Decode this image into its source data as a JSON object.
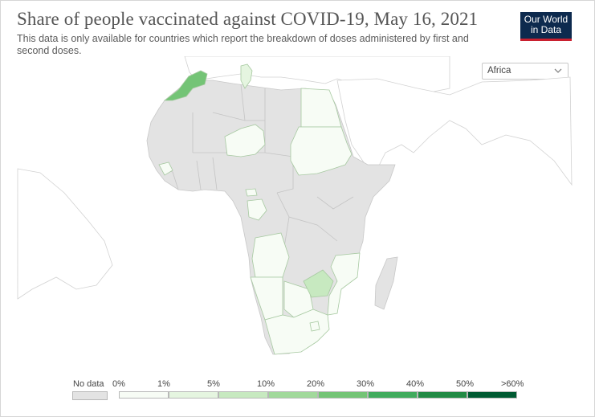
{
  "header": {
    "title": "Share of people vaccinated against COVID-19, May 16, 2021",
    "subtitle": "This data is only available for countries which report the breakdown of doses administered by first and second doses."
  },
  "logo": {
    "line1": "Our World",
    "line2": "in Data"
  },
  "region_select": {
    "value": "Africa"
  },
  "legend": {
    "no_data_label": "No data",
    "ticks": [
      "0%",
      "1%",
      "5%",
      "10%",
      "20%",
      "30%",
      "40%",
      "50%",
      ">60%"
    ],
    "colors": [
      "#f7fcf5",
      "#e5f5e0",
      "#c7e9c0",
      "#a1d99b",
      "#74c476",
      "#41ab5d",
      "#238b45",
      "#005a32"
    ]
  },
  "colors": {
    "no_data": "#e3e3e3",
    "land_outside": "#ffffff",
    "border": "#bdbdbd"
  },
  "map": {
    "countries": [
      {
        "name": "Morocco",
        "bin": 4
      },
      {
        "name": "Tunisia",
        "bin": 1
      },
      {
        "name": "Egypt",
        "bin": 0
      },
      {
        "name": "Sudan",
        "bin": 0
      },
      {
        "name": "Nigeria",
        "bin": 0
      },
      {
        "name": "Sierra Leone",
        "bin": 0
      },
      {
        "name": "Gabon",
        "bin": 0
      },
      {
        "name": "Equatorial Guinea",
        "bin": 0
      },
      {
        "name": "Angola",
        "bin": 0
      },
      {
        "name": "Namibia",
        "bin": 0
      },
      {
        "name": "Botswana",
        "bin": 0
      },
      {
        "name": "Zimbabwe",
        "bin": 2
      },
      {
        "name": "Mozambique",
        "bin": 0
      },
      {
        "name": "South Africa",
        "bin": 0
      },
      {
        "name": "Eswatini",
        "bin": 0
      }
    ]
  }
}
